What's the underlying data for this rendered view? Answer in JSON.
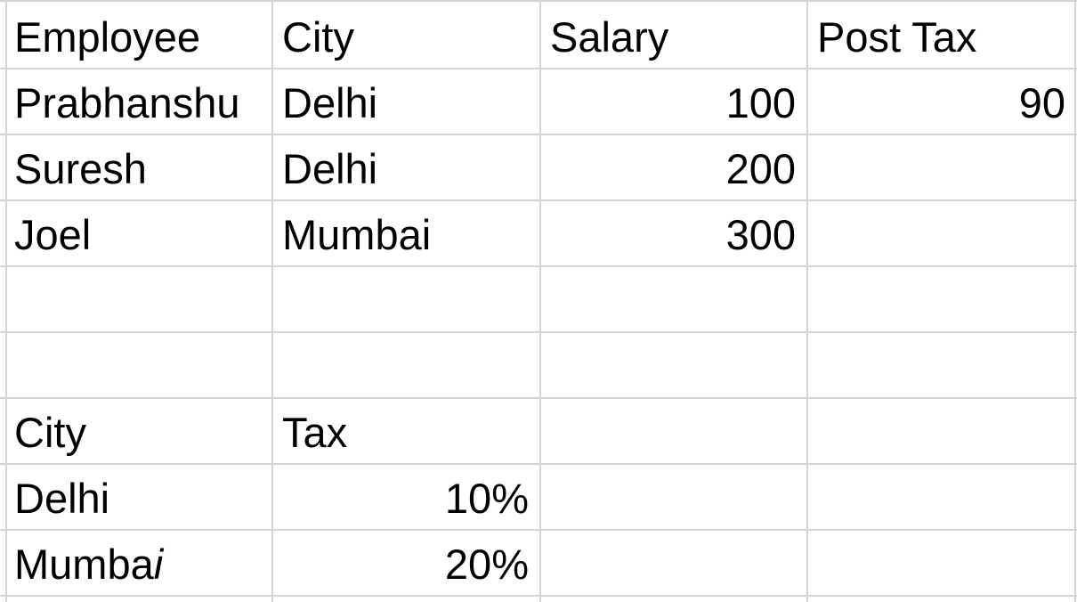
{
  "sheet": {
    "employee_table": {
      "headers": [
        "Employee",
        "City",
        "Salary",
        "Post Tax"
      ],
      "rows": [
        {
          "employee": "Prabhanshu",
          "city": "Delhi",
          "salary": "100",
          "post_tax": "90"
        },
        {
          "employee": "Suresh",
          "city": "Delhi",
          "salary": "200",
          "post_tax": ""
        },
        {
          "employee": "Joel",
          "city": "Mumbai",
          "salary": "300",
          "post_tax": ""
        }
      ]
    },
    "tax_table": {
      "headers": [
        "City",
        "Tax"
      ],
      "rows": [
        {
          "city": "Delhi",
          "tax": "10%"
        },
        {
          "city_prefix": "Mumba",
          "city_italic_suffix": "i",
          "tax": "20%"
        }
      ]
    }
  }
}
